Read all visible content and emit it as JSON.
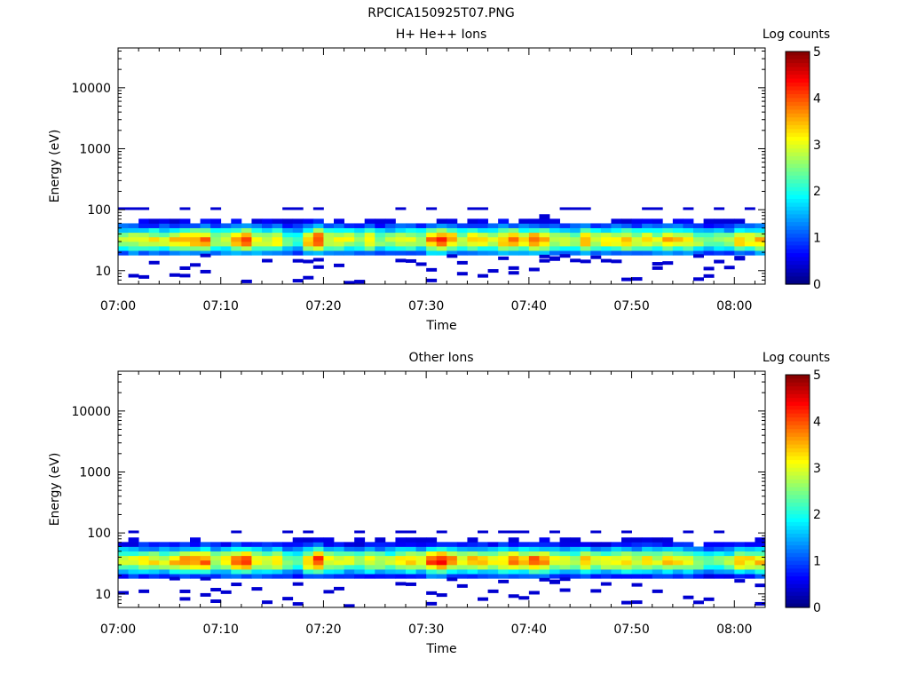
{
  "figure": {
    "title": "RPCICA150925T07.PNG"
  },
  "chart_data": [
    {
      "type": "heatmap",
      "title": "H+ He++ Ions",
      "xlabel": "Time",
      "ylabel": "Energy (eV)",
      "x_range": [
        "07:00",
        "08:03"
      ],
      "x_ticks": [
        "07:00",
        "07:10",
        "07:20",
        "07:30",
        "07:40",
        "07:50",
        "08:00"
      ],
      "y_scale": "log",
      "y_range": [
        6,
        45000
      ],
      "y_ticks": [
        "10",
        "100",
        "1000",
        "10000"
      ],
      "colorbar": {
        "label": "Log counts",
        "range": [
          0,
          5
        ],
        "ticks": [
          "0",
          "1",
          "2",
          "3",
          "4",
          "5"
        ],
        "colormap": "jet"
      },
      "band": {
        "energy_min_eV": 18,
        "energy_max_eV": 100,
        "peak_energy_eV": 32
      },
      "time_columns_min": [
        0,
        1,
        2,
        3,
        4,
        5,
        6,
        7,
        8,
        9,
        10,
        11,
        12,
        13,
        14,
        15,
        16,
        17,
        18,
        19,
        20,
        21,
        22,
        23,
        24,
        25,
        26,
        27,
        28,
        29,
        30,
        31,
        32,
        33,
        34,
        35,
        36,
        37,
        38,
        39,
        40,
        41,
        42,
        43,
        44,
        45,
        46,
        47,
        48,
        49,
        50,
        51,
        52,
        53,
        54,
        55,
        56,
        57,
        58,
        59,
        60,
        61,
        62
      ],
      "peak_log_counts": [
        3.0,
        3.0,
        3.1,
        3.1,
        2.9,
        3.3,
        3.4,
        3.7,
        3.8,
        2.8,
        3.0,
        3.5,
        4.0,
        3.3,
        3.0,
        3.3,
        2.4,
        2.2,
        3.5,
        4.2,
        3.0,
        3.1,
        3.0,
        2.8,
        3.3,
        2.6,
        2.6,
        3.2,
        2.9,
        2.7,
        3.8,
        4.1,
        3.6,
        3.0,
        3.4,
        3.2,
        2.8,
        3.5,
        3.8,
        3.4,
        3.9,
        3.5,
        3.0,
        3.1,
        2.8,
        3.5,
        3.0,
        3.2,
        3.2,
        3.4,
        3.0,
        3.3,
        3.0,
        3.6,
        3.3,
        3.1,
        2.8,
        2.4,
        2.6,
        2.5,
        3.4,
        3.2,
        3.4
      ]
    },
    {
      "type": "heatmap",
      "title": "Other Ions",
      "xlabel": "Time",
      "ylabel": "Energy (eV)",
      "x_range": [
        "07:00",
        "08:03"
      ],
      "x_ticks": [
        "07:00",
        "07:10",
        "07:20",
        "07:30",
        "07:40",
        "07:50",
        "08:00"
      ],
      "y_scale": "log",
      "y_range": [
        6,
        45000
      ],
      "y_ticks": [
        "10",
        "100",
        "1000",
        "10000"
      ],
      "colorbar": {
        "label": "Log counts",
        "range": [
          0,
          5
        ],
        "ticks": [
          "0",
          "1",
          "2",
          "3",
          "4",
          "5"
        ],
        "colormap": "jet"
      },
      "band": {
        "energy_min_eV": 18,
        "energy_max_eV": 100,
        "peak_energy_eV": 35
      },
      "time_columns_min": [
        0,
        1,
        2,
        3,
        4,
        5,
        6,
        7,
        8,
        9,
        10,
        11,
        12,
        13,
        14,
        15,
        16,
        17,
        18,
        19,
        20,
        21,
        22,
        23,
        24,
        25,
        26,
        27,
        28,
        29,
        30,
        31,
        32,
        33,
        34,
        35,
        36,
        37,
        38,
        39,
        40,
        41,
        42,
        43,
        44,
        45,
        46,
        47,
        48,
        49,
        50,
        51,
        52,
        53,
        54,
        55,
        56,
        57,
        58,
        59,
        60,
        61,
        62
      ],
      "peak_log_counts": [
        3.1,
        3.0,
        3.3,
        3.2,
        3.0,
        3.4,
        3.6,
        3.8,
        3.9,
        2.9,
        3.3,
        3.8,
        4.1,
        3.4,
        3.1,
        3.4,
        2.6,
        2.4,
        3.5,
        4.2,
        3.1,
        3.0,
        2.9,
        2.8,
        3.1,
        2.9,
        2.7,
        3.4,
        3.3,
        3.1,
        4.1,
        4.3,
        3.7,
        3.3,
        3.5,
        3.4,
        3.0,
        3.4,
        3.8,
        3.6,
        4.0,
        3.7,
        3.2,
        3.2,
        2.9,
        3.4,
        3.0,
        3.1,
        3.2,
        3.3,
        3.0,
        3.3,
        3.0,
        3.5,
        3.2,
        3.0,
        2.8,
        2.3,
        2.5,
        2.6,
        3.5,
        3.3,
        3.4
      ]
    }
  ]
}
